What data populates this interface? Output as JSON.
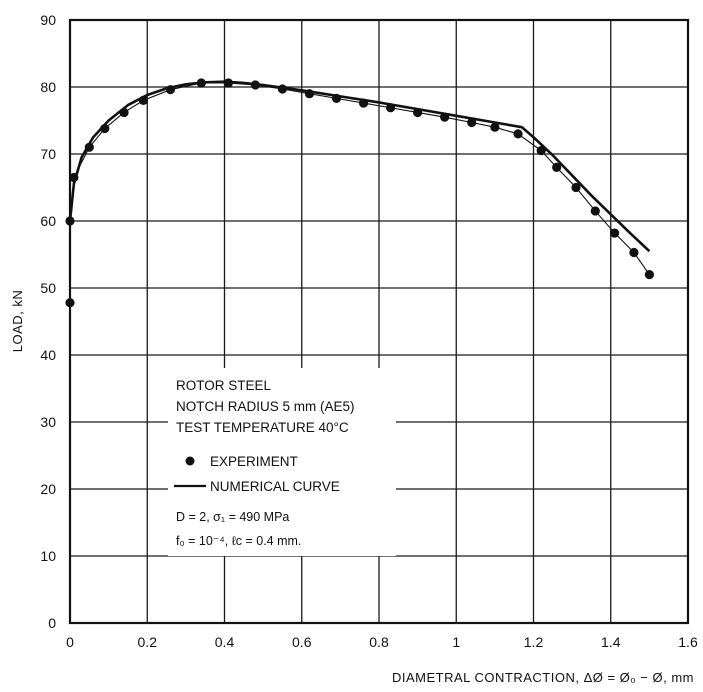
{
  "chart_data": {
    "type": "line",
    "xlabel": "DIAMETRAL CONTRACTION, ΔØ = Ø₀ − Ø, mm",
    "ylabel": "LOAD, kN",
    "xlim": [
      0,
      1.6
    ],
    "ylim": [
      0,
      90
    ],
    "x_ticks": [
      "0",
      "0.2",
      "0.4",
      "0.6",
      "0.8",
      "1",
      "1.2",
      "1.4",
      "1.6"
    ],
    "y_ticks": [
      "0",
      "10",
      "20",
      "30",
      "40",
      "50",
      "60",
      "70",
      "80",
      "90"
    ],
    "grid": true,
    "legend_placement": "lower-left",
    "series": [
      {
        "name": "EXPERIMENT",
        "style": "markers",
        "x": [
          0.0,
          0.0,
          0.01,
          0.05,
          0.09,
          0.14,
          0.19,
          0.26,
          0.34,
          0.41,
          0.48,
          0.55,
          0.62,
          0.69,
          0.76,
          0.83,
          0.9,
          0.97,
          1.04,
          1.1,
          1.16,
          1.22,
          1.26,
          1.31,
          1.36,
          1.41,
          1.46,
          1.5
        ],
        "values": [
          47.8,
          60.0,
          66.5,
          71.0,
          73.8,
          76.2,
          78.0,
          79.6,
          80.6,
          80.6,
          80.3,
          79.7,
          79.0,
          78.3,
          77.6,
          76.9,
          76.2,
          75.5,
          74.7,
          74.0,
          73.0,
          70.5,
          68.0,
          65.0,
          61.5,
          58.2,
          55.3,
          52.0
        ]
      },
      {
        "name": "NUMERICAL CURVE",
        "style": "line",
        "x": [
          0.0,
          0.01,
          0.03,
          0.06,
          0.1,
          0.15,
          0.2,
          0.25,
          0.3,
          0.35,
          0.4,
          0.45,
          0.5,
          0.6,
          0.7,
          0.8,
          0.9,
          1.0,
          1.1,
          1.17,
          1.2,
          1.25,
          1.3,
          1.35,
          1.4,
          1.45,
          1.5
        ],
        "values": [
          60.0,
          65.5,
          69.5,
          72.5,
          75.0,
          77.3,
          78.8,
          79.8,
          80.4,
          80.7,
          80.8,
          80.6,
          80.3,
          79.5,
          78.6,
          77.7,
          76.7,
          75.7,
          74.7,
          74.0,
          72.5,
          69.8,
          66.8,
          63.8,
          61.0,
          58.2,
          55.5
        ]
      }
    ],
    "annotation": {
      "lines": [
        "ROTOR STEEL",
        "NOTCH RADIUS 5 mm (AE5)",
        "TEST TEMPERATURE 40°C"
      ],
      "experiment_label": "EXPERIMENT",
      "curve_label": "NUMERICAL CURVE",
      "param_line1": "D = 2, σ₁ = 490 MPa",
      "param_line2": "f₀ = 10⁻⁴, ℓc = 0.4 mm."
    }
  },
  "colors": {
    "ink": "#111111",
    "grid": "#1a1a1a",
    "background": "#ffffff"
  }
}
